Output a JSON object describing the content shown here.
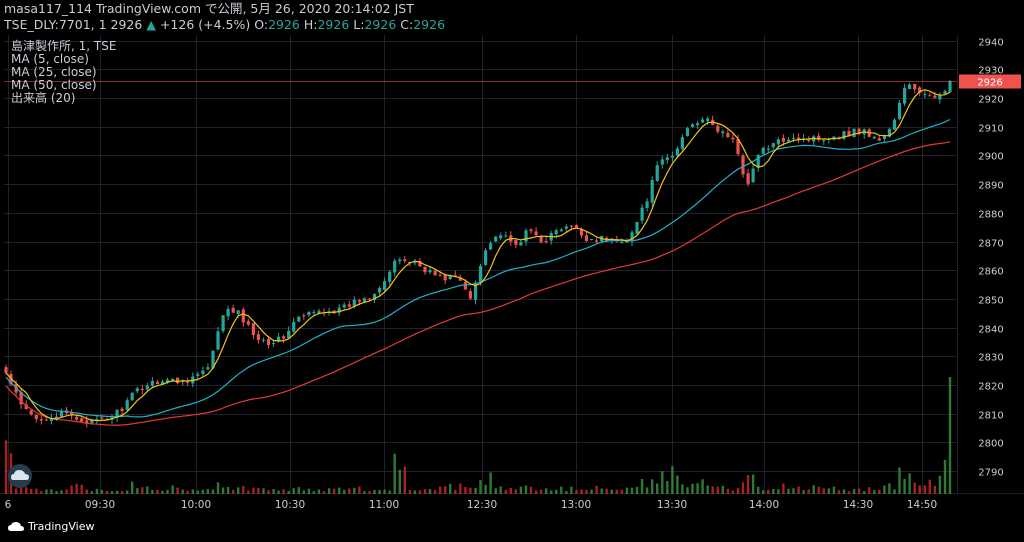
{
  "header": {
    "line1": "masa117_114 TradingView.com で公開, 5月 26, 2020 20:14:02 JST",
    "symbol_prefix": "TSE_DLY:7701, 1",
    "price": "2926",
    "arrow": "▲",
    "change": "+126 (+4.5%)",
    "o_label": "O:",
    "o_value": "2926",
    "h_label": "H:",
    "h_value": "2926",
    "l_label": "L:",
    "l_value": "2926",
    "c_label": "C:",
    "c_value": "2926"
  },
  "legend": [
    "島津製作所, 1, TSE",
    "MA (5, close)",
    "MA (25, close)",
    "MA (50, close)",
    "出来高 (20)"
  ],
  "brand": {
    "label": "TradingView"
  },
  "colors": {
    "up": "#26a69a",
    "down": "#ef5350",
    "ma5": "#f0c419",
    "ma25": "#20b0c8",
    "ma50": "#e53935",
    "grid": "#1e222d",
    "axis_text": "#c8ccd4",
    "last_price_bg": "#ef5350",
    "vol_up": "#388e3c",
    "vol_down": "#c62828"
  },
  "chart_data": {
    "type": "candlestick",
    "y_axis": {
      "min": 2782,
      "max": 2942,
      "ticks": [
        2790,
        2800,
        2810,
        2820,
        2830,
        2840,
        2850,
        2860,
        2870,
        2880,
        2890,
        2900,
        2910,
        2920,
        2930,
        2940
      ],
      "side": "right"
    },
    "x_axis": {
      "labels": [
        "6",
        "09:30",
        "10:00",
        "10:30",
        "11:00",
        "12:30",
        "13:00",
        "13:30",
        "14:00",
        "14:30",
        "14:50"
      ]
    },
    "last_price": 2926,
    "price_path": [
      2824,
      2813,
      2808,
      2809,
      2810,
      2808,
      2807,
      2808,
      2812,
      2818,
      2821,
      2822,
      2821,
      2823,
      2826,
      2846,
      2845,
      2838,
      2835,
      2836,
      2843,
      2845,
      2846,
      2846,
      2849,
      2851,
      2856,
      2864,
      2863,
      2860,
      2857,
      2858,
      2850,
      2868,
      2873,
      2868,
      2874,
      2870,
      2874,
      2875,
      2871,
      2871,
      2870,
      2872,
      2883,
      2898,
      2900,
      2911,
      2913,
      2909,
      2906,
      2890,
      2902,
      2904,
      2907,
      2906,
      2906,
      2907,
      2908,
      2909,
      2905,
      2910,
      2925,
      2922,
      2919,
      2926
    ],
    "volume_path": [
      30,
      4,
      3,
      4,
      3,
      6,
      3,
      3,
      4,
      8,
      5,
      5,
      4,
      3,
      3,
      10,
      6,
      4,
      5,
      3,
      4,
      3,
      3,
      4,
      4,
      3,
      4,
      28,
      3,
      4,
      5,
      6,
      4,
      12,
      4,
      4,
      5,
      3,
      5,
      4,
      3,
      6,
      3,
      4,
      8,
      12,
      16,
      10,
      8,
      7,
      5,
      12,
      4,
      5,
      6,
      4,
      5,
      4,
      3,
      4,
      5,
      6,
      14,
      8,
      10,
      80
    ],
    "series": [
      {
        "name": "MA (5, close)"
      },
      {
        "name": "MA (25, close)"
      },
      {
        "name": "MA (50, close)"
      },
      {
        "name": "出来高 (20)"
      }
    ]
  }
}
